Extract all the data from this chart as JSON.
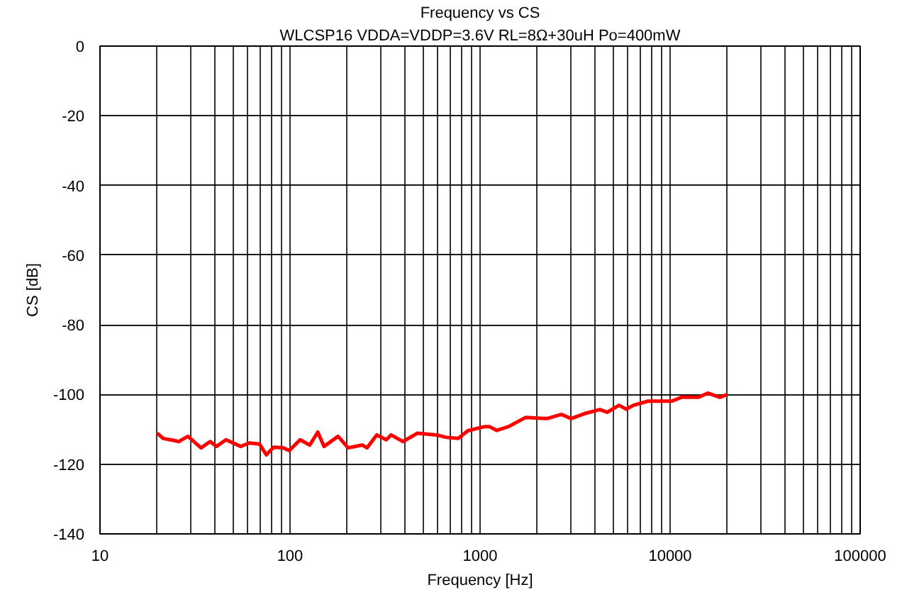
{
  "chart_data": {
    "type": "line",
    "title": "Frequency vs CS",
    "subtitle": "WLCSP16 VDDA=VDDP=3.6V RL=8Ω+30uH Po=400mW",
    "xlabel": "Frequency [Hz]",
    "ylabel": "CS [dB]",
    "log": "x",
    "grid": true,
    "marker": "none",
    "line_style": "solid",
    "xlim": [
      10,
      100000
    ],
    "ylim": [
      -140,
      0
    ],
    "xticks": [
      10,
      {
        "value": 20,
        "label": null
      },
      {
        "value": 30,
        "label": null
      },
      {
        "value": 40,
        "label": null
      },
      {
        "value": 50,
        "label": null
      },
      {
        "value": 60,
        "label": null
      },
      {
        "value": 70,
        "label": null
      },
      {
        "value": 80,
        "label": null
      },
      {
        "value": 90,
        "label": null
      },
      100,
      {
        "value": 200,
        "label": null
      },
      {
        "value": 300,
        "label": null
      },
      {
        "value": 400,
        "label": null
      },
      {
        "value": 500,
        "label": null
      },
      {
        "value": 600,
        "label": null
      },
      {
        "value": 700,
        "label": null
      },
      {
        "value": 800,
        "label": null
      },
      {
        "value": 900,
        "label": null
      },
      1000,
      {
        "value": 2000,
        "label": null
      },
      {
        "value": 3000,
        "label": null
      },
      {
        "value": 4000,
        "label": null
      },
      {
        "value": 5000,
        "label": null
      },
      {
        "value": 6000,
        "label": null
      },
      {
        "value": 7000,
        "label": null
      },
      {
        "value": 8000,
        "label": null
      },
      {
        "value": 9000,
        "label": null
      },
      10000,
      {
        "value": 20000,
        "label": null
      },
      {
        "value": 30000,
        "label": null
      },
      {
        "value": 40000,
        "label": null
      },
      {
        "value": 50000,
        "label": null
      },
      {
        "value": 60000,
        "label": null
      },
      {
        "value": 70000,
        "label": null
      },
      {
        "value": 80000,
        "label": null
      },
      {
        "value": 90000,
        "label": null
      },
      100000
    ],
    "yticks": [
      -140,
      -120,
      -100,
      -80,
      -60,
      -40,
      -20,
      0
    ],
    "series": [
      {
        "color": "#ff0000",
        "x": [
          20,
          21.5,
          24,
          26,
          29,
          34,
          38,
          41,
          46,
          55,
          61,
          69,
          75,
          82,
          92,
          99,
          113,
          127,
          140,
          151,
          179,
          202,
          240,
          254,
          286,
          321,
          340,
          393,
          468,
          590,
          664,
          767,
          862,
          1057,
          1119,
          1222,
          1413,
          1733,
          2250,
          2680,
          3013,
          3589,
          4270,
          4660,
          5385,
          5875,
          6414,
          7640,
          10210,
          11460,
          14060,
          15790,
          18250,
          20000
        ],
        "values": [
          -111.1,
          -112.6,
          -113.1,
          -113.5,
          -112,
          -115.3,
          -113.5,
          -114.9,
          -113,
          -114.9,
          -113.9,
          -114.2,
          -117.3,
          -115.1,
          -115.3,
          -116.1,
          -113,
          -114.5,
          -110.8,
          -114.9,
          -112,
          -115.3,
          -114.5,
          -115.3,
          -111.6,
          -113,
          -111.6,
          -113.5,
          -111.1,
          -111.6,
          -112.3,
          -112.6,
          -110.4,
          -109.2,
          -109.2,
          -110.3,
          -109.2,
          -106.6,
          -106.9,
          -105.7,
          -106.9,
          -105.4,
          -104.3,
          -105.1,
          -103.1,
          -104.2,
          -103.1,
          -101.9,
          -101.9,
          -100.8,
          -100.8,
          -99.6,
          -100.8,
          -100.0
        ]
      }
    ]
  }
}
